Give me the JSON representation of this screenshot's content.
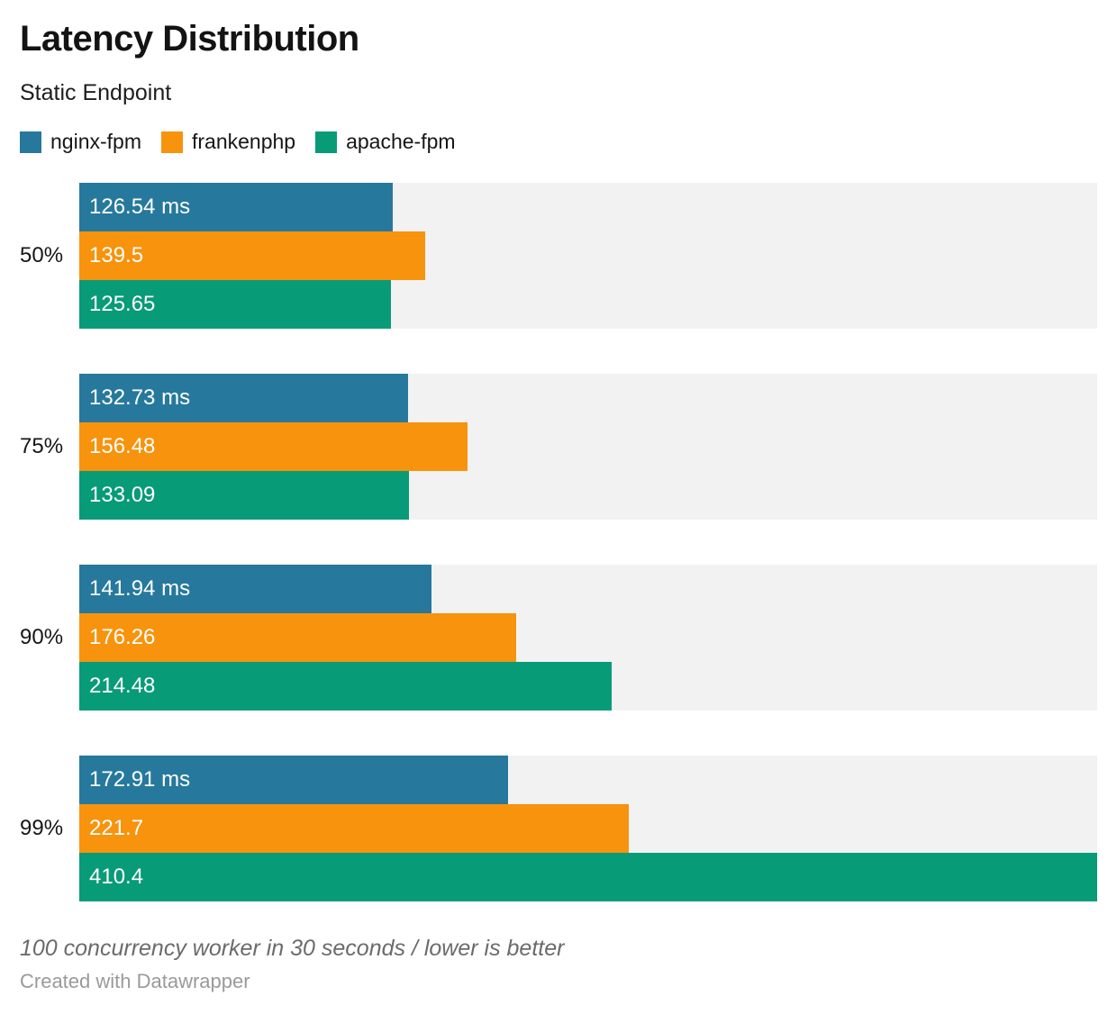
{
  "header": {
    "title": "Latency Distribution",
    "subtitle": "Static Endpoint"
  },
  "legend": [
    {
      "label": "nginx-fpm",
      "color": "#26799c"
    },
    {
      "label": "frankenphp",
      "color": "#f7930d"
    },
    {
      "label": "apache-fpm",
      "color": "#089b78"
    }
  ],
  "chart_data": {
    "type": "bar",
    "orientation": "horizontal",
    "title": "Latency Distribution",
    "subtitle": "Static Endpoint",
    "unit": "ms",
    "categories": [
      "50%",
      "75%",
      "90%",
      "99%"
    ],
    "series": [
      {
        "name": "nginx-fpm",
        "color": "#26799c",
        "values": [
          126.54,
          132.73,
          141.94,
          172.91
        ],
        "labels": [
          "126.54 ms",
          "132.73 ms",
          "141.94 ms",
          "172.91 ms"
        ]
      },
      {
        "name": "frankenphp",
        "color": "#f7930d",
        "values": [
          139.5,
          156.48,
          176.26,
          221.7
        ],
        "labels": [
          "139.5",
          "156.48",
          "176.26",
          "221.7"
        ]
      },
      {
        "name": "apache-fpm",
        "color": "#089b78",
        "values": [
          125.65,
          133.09,
          214.48,
          410.4
        ],
        "labels": [
          "125.65",
          "133.09",
          "214.48",
          "410.4"
        ]
      }
    ],
    "xlim": [
      0,
      410.4
    ],
    "grid": false,
    "legend_position": "top",
    "track_color": "#f2f2f2",
    "value_label_color": "#ffffff"
  },
  "footer": {
    "note": "100 concurrency worker in 30 seconds / lower is better",
    "attribution": "Created with Datawrapper"
  }
}
